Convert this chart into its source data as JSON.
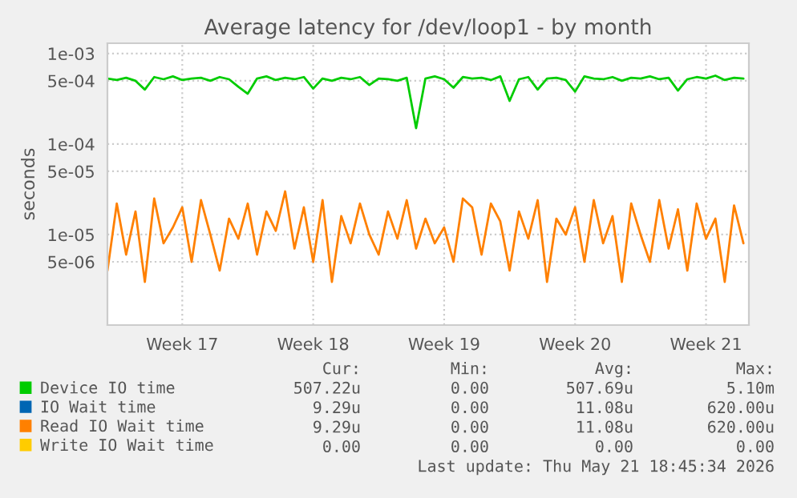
{
  "chart_data": {
    "type": "line",
    "title": "Average latency for /dev/loop1 - by month",
    "ylabel": "seconds",
    "x": [
      "2026-04-17T12:00",
      "2026-04-18T00:00",
      "2026-04-18T12:00",
      "2026-04-19T00:00",
      "2026-04-19T12:00",
      "2026-04-20T00:00",
      "2026-04-20T12:00",
      "2026-04-21T00:00",
      "2026-04-21T12:00",
      "2026-04-22T00:00",
      "2026-04-22T12:00",
      "2026-04-23T00:00",
      "2026-04-23T12:00",
      "2026-04-24T00:00",
      "2026-04-24T12:00",
      "2026-04-25T00:00",
      "2026-04-25T12:00",
      "2026-04-26T00:00",
      "2026-04-26T12:00",
      "2026-04-27T00:00",
      "2026-04-27T12:00",
      "2026-04-28T00:00",
      "2026-04-28T12:00",
      "2026-04-29T00:00",
      "2026-04-29T12:00",
      "2026-04-30T00:00",
      "2026-04-30T12:00",
      "2026-05-01T00:00",
      "2026-05-01T12:00",
      "2026-05-02T00:00",
      "2026-05-02T12:00",
      "2026-05-03T00:00",
      "2026-05-03T12:00",
      "2026-05-04T00:00",
      "2026-05-04T12:00",
      "2026-05-05T00:00",
      "2026-05-05T12:00",
      "2026-05-06T00:00",
      "2026-05-06T12:00",
      "2026-05-07T00:00",
      "2026-05-07T12:00",
      "2026-05-08T00:00",
      "2026-05-08T12:00",
      "2026-05-09T00:00",
      "2026-05-09T12:00",
      "2026-05-10T00:00",
      "2026-05-10T12:00",
      "2026-05-11T00:00",
      "2026-05-11T12:00",
      "2026-05-12T00:00",
      "2026-05-12T12:00",
      "2026-05-13T00:00",
      "2026-05-13T12:00",
      "2026-05-14T00:00",
      "2026-05-14T12:00",
      "2026-05-15T00:00",
      "2026-05-15T12:00",
      "2026-05-16T00:00",
      "2026-05-16T12:00",
      "2026-05-17T00:00",
      "2026-05-17T12:00",
      "2026-05-18T00:00",
      "2026-05-18T12:00",
      "2026-05-19T00:00",
      "2026-05-19T12:00",
      "2026-05-20T00:00",
      "2026-05-20T12:00",
      "2026-05-21T00:00",
      "2026-05-21T12:00"
    ],
    "series": [
      {
        "name": "Device IO time",
        "color": "#00cc00",
        "values": [
          0.00053,
          0.00051,
          0.00054,
          0.0005,
          0.0004,
          0.00055,
          0.00052,
          0.00056,
          0.00051,
          0.00053,
          0.00054,
          0.0005,
          0.00055,
          0.00052,
          0.00043,
          0.00036,
          0.00053,
          0.00056,
          0.00051,
          0.00054,
          0.00052,
          0.00055,
          0.00041,
          0.00053,
          0.0005,
          0.00054,
          0.00052,
          0.00055,
          0.00045,
          0.00053,
          0.00052,
          0.0005,
          0.00054,
          0.00015,
          0.00053,
          0.00056,
          0.00052,
          0.00042,
          0.00055,
          0.00053,
          0.00054,
          0.00051,
          0.00056,
          0.0003,
          0.00052,
          0.00055,
          0.0004,
          0.00053,
          0.00054,
          0.00051,
          0.00038,
          0.00056,
          0.00053,
          0.00052,
          0.00055,
          0.0005,
          0.00054,
          0.00053,
          0.00056,
          0.00052,
          0.00054,
          0.00039,
          0.00052,
          0.00055,
          0.00053,
          0.00057,
          0.00051,
          0.00054,
          0.00053
        ]
      },
      {
        "name": "IO Wait time",
        "color": "#0066b3",
        "values": [
          null,
          null,
          null,
          null,
          null,
          null,
          null,
          null,
          null,
          null,
          null,
          null,
          null,
          null,
          null,
          null,
          null,
          null,
          null,
          null,
          null,
          null,
          null,
          null,
          null,
          null,
          null,
          null,
          null,
          null,
          null,
          null,
          null,
          null,
          null,
          null,
          null,
          null,
          null,
          null,
          null,
          null,
          null,
          null,
          null,
          null,
          null,
          null,
          null,
          null,
          null,
          null,
          null,
          null,
          null,
          null,
          null,
          null,
          null,
          null,
          null,
          null,
          null,
          null,
          null,
          null,
          null,
          null,
          null
        ]
      },
      {
        "name": "Read IO Wait time",
        "color": "#ff8000",
        "values": [
          4e-06,
          2.2e-05,
          6e-06,
          1.8e-05,
          3e-06,
          2.5e-05,
          8e-06,
          1.2e-05,
          2e-05,
          5e-06,
          2.4e-05,
          1e-05,
          4e-06,
          1.5e-05,
          9e-06,
          2.2e-05,
          6e-06,
          1.8e-05,
          1.1e-05,
          3e-05,
          7e-06,
          2e-05,
          5e-06,
          2.4e-05,
          3e-06,
          1.6e-05,
          8e-06,
          2.2e-05,
          1e-05,
          6e-06,
          1.8e-05,
          9e-06,
          2.4e-05,
          7e-06,
          1.5e-05,
          8e-06,
          1.2e-05,
          5e-06,
          2.5e-05,
          2e-05,
          6e-06,
          2.2e-05,
          1.4e-05,
          4e-06,
          1.8e-05,
          9e-06,
          2.4e-05,
          3e-06,
          1.5e-05,
          1e-05,
          2e-05,
          5e-06,
          2.4e-05,
          8e-06,
          1.6e-05,
          3e-06,
          2.2e-05,
          1e-05,
          5e-06,
          2.4e-05,
          7e-06,
          1.9e-05,
          4e-06,
          2.2e-05,
          9e-06,
          1.5e-05,
          3e-06,
          2.1e-05,
          8e-06
        ]
      },
      {
        "name": "Write IO Wait time",
        "color": "#ffcc00",
        "values": [
          null,
          null,
          null,
          null,
          null,
          null,
          null,
          null,
          null,
          null,
          null,
          null,
          null,
          null,
          null,
          null,
          null,
          null,
          null,
          null,
          null,
          null,
          null,
          null,
          null,
          null,
          null,
          null,
          null,
          null,
          null,
          null,
          null,
          null,
          null,
          null,
          null,
          null,
          null,
          null,
          null,
          null,
          null,
          null,
          null,
          null,
          null,
          null,
          null,
          null,
          null,
          null,
          null,
          null,
          null,
          null,
          null,
          null,
          null,
          null,
          null,
          null,
          null,
          null,
          null,
          null,
          null,
          null,
          null
        ]
      }
    ],
    "xlim": [
      "2026-04-17T12:00",
      "2026-05-21T19:00"
    ],
    "xticks": [
      {
        "value": "2026-04-21T12:00",
        "label": "Week 17"
      },
      {
        "value": "2026-04-28T12:00",
        "label": "Week 18"
      },
      {
        "value": "2026-05-05T12:00",
        "label": "Week 19"
      },
      {
        "value": "2026-05-12T12:00",
        "label": "Week 20"
      },
      {
        "value": "2026-05-19T12:00",
        "label": "Week 21"
      }
    ],
    "ylim": [
      1e-06,
      0.0013
    ],
    "yticks": [
      {
        "value": 0.001,
        "label": "1e-03"
      },
      {
        "value": 0.0005,
        "label": "5e-04"
      },
      {
        "value": 0.0001,
        "label": "1e-04"
      },
      {
        "value": 5e-05,
        "label": "5e-05"
      },
      {
        "value": 1e-05,
        "label": "1e-05"
      },
      {
        "value": 5e-06,
        "label": "5e-06"
      }
    ],
    "log": "y",
    "grid": true,
    "legend": "bottom",
    "marker": "none",
    "line_style": "solid",
    "annotations": [
      "Cur:",
      "Min:",
      "Avg:",
      "Max:",
      "507.22u",
      "0.00",
      "507.69u",
      "5.10m",
      "9.29u",
      "0.00",
      "11.08u",
      "620.00u",
      "9.29u",
      "0.00",
      "11.08u",
      "620.00u",
      "0.00",
      "0.00",
      "0.00",
      "0.00",
      "Last update: Thu May 21 18:45:34 2026"
    ]
  }
}
